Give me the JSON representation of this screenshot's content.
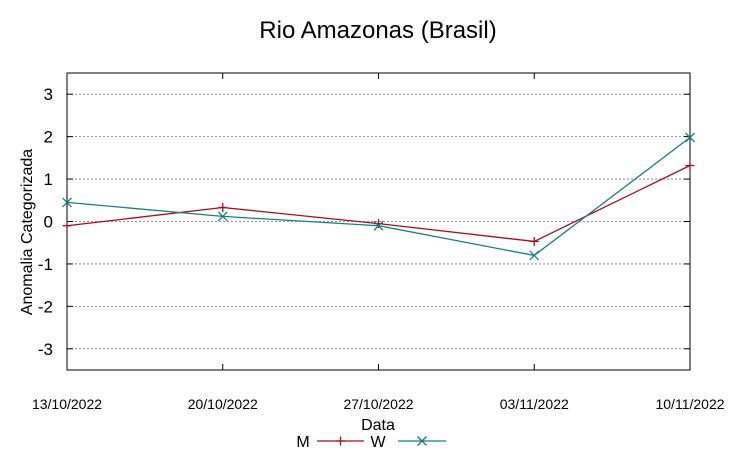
{
  "chart_data": {
    "type": "line",
    "title": "Rio Amazonas (Brasil)",
    "xlabel": "Data",
    "ylabel": "Anomalia Categorizada",
    "categories": [
      "13/10/2022",
      "20/10/2022",
      "27/10/2022",
      "03/11/2022",
      "10/11/2022"
    ],
    "ylim": [
      -3.5,
      3.5
    ],
    "yticks": [
      "3",
      "2",
      "1",
      "0",
      "-1",
      "-2",
      "-3"
    ],
    "grid": true,
    "legend": "bottom-center",
    "series": [
      {
        "name": "M",
        "color": "#a30f1e",
        "marker": "plus",
        "values": [
          -0.1,
          0.33,
          -0.05,
          -0.47,
          1.32
        ]
      },
      {
        "name": "W",
        "color": "#1a7f7f",
        "marker": "cross",
        "values": [
          0.45,
          0.12,
          -0.1,
          -0.8,
          1.98
        ]
      }
    ]
  }
}
